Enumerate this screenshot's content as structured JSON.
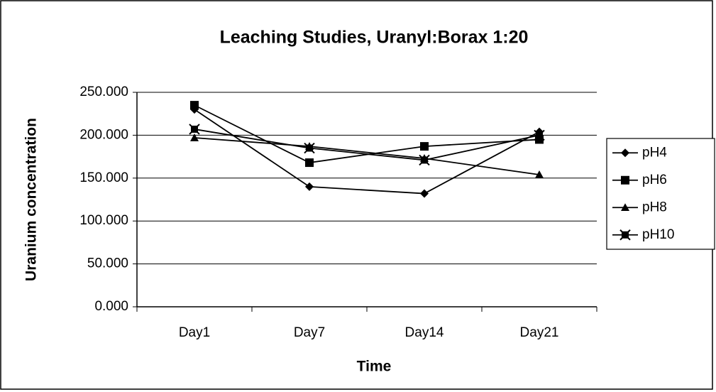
{
  "chart_data": {
    "type": "line",
    "title": "Leaching Studies, Uranyl:Borax 1:20",
    "x_label": "Time",
    "y_label": "Uranium concentration",
    "categories": [
      "Day1",
      "Day7",
      "Day14",
      "Day21"
    ],
    "series": [
      {
        "name": "pH4",
        "color": "#000000",
        "marker": "diamond",
        "values": [
          230,
          140,
          132,
          204
        ]
      },
      {
        "name": "pH6",
        "color": "#000000",
        "marker": "square",
        "values": [
          235,
          168,
          187,
          195
        ]
      },
      {
        "name": "pH8",
        "color": "#000000",
        "marker": "triangle",
        "values": [
          197,
          187,
          173,
          154
        ]
      },
      {
        "name": "pH10",
        "color": "#000000",
        "marker": "cross-square",
        "values": [
          207,
          185,
          171,
          200
        ]
      }
    ],
    "ylim": [
      0,
      250
    ],
    "yticks": [
      {
        "value": 0,
        "label": "0.000"
      },
      {
        "value": 50,
        "label": "50.000"
      },
      {
        "value": 100,
        "label": "100.000"
      },
      {
        "value": 150,
        "label": "150.000"
      },
      {
        "value": 200,
        "label": "200.000"
      },
      {
        "value": 250,
        "label": "250.000"
      }
    ],
    "grid": true,
    "legend": "right"
  }
}
